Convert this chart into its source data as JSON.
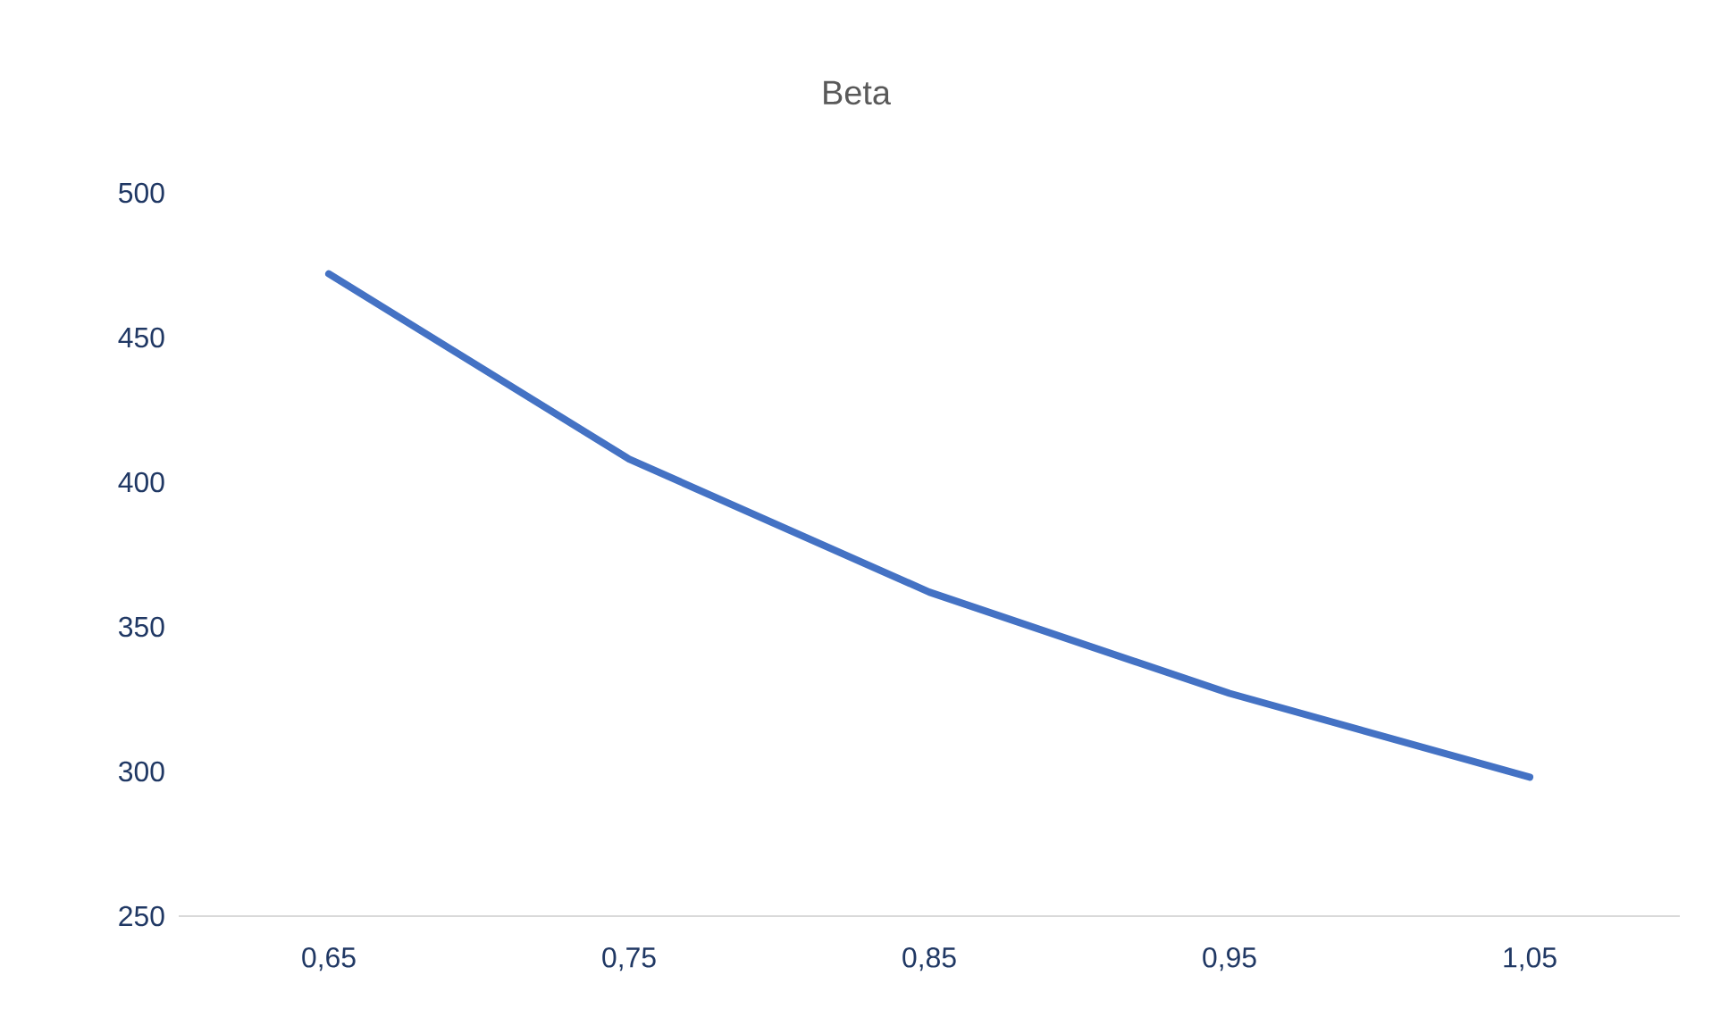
{
  "chart_data": {
    "type": "line",
    "title": "Beta",
    "categories": [
      "0,65",
      "0,75",
      "0,85",
      "0,95",
      "1,05"
    ],
    "series": [
      {
        "color": "#4472c4",
        "values": [
          472,
          408,
          362,
          327,
          298
        ]
      }
    ],
    "ylim": [
      250,
      500
    ],
    "yticks": [
      250,
      300,
      350,
      400,
      450,
      500
    ],
    "marker": "none",
    "line_style": "solid"
  }
}
